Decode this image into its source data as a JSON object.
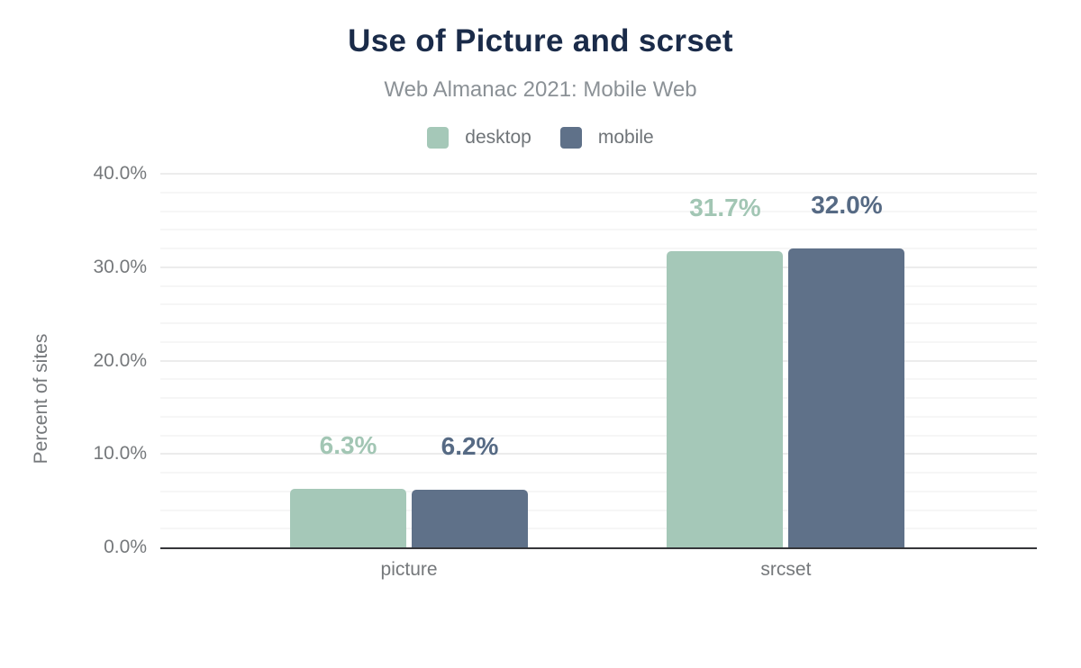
{
  "chart_data": {
    "type": "bar",
    "title": "Use of Picture and scrset",
    "subtitle": "Web Almanac 2021: Mobile Web",
    "categories": [
      "picture",
      "srcset"
    ],
    "series": [
      {
        "name": "desktop",
        "color": "#a5c8b8",
        "label_color": "#a2c6b4",
        "values": [
          6.3,
          31.7
        ],
        "value_labels": [
          "6.3%",
          "31.7%"
        ]
      },
      {
        "name": "mobile",
        "color": "#5f7189",
        "label_color": "#566a84",
        "values": [
          6.2,
          32.0
        ],
        "value_labels": [
          "6.2%",
          "32.0%"
        ]
      }
    ],
    "xlabel": "",
    "ylabel": "Percent of sites",
    "ylim": [
      0,
      40
    ],
    "yticks": [
      {
        "value": 0,
        "label": "0.0%"
      },
      {
        "value": 10,
        "label": "10.0%"
      },
      {
        "value": 20,
        "label": "20.0%"
      },
      {
        "value": 30,
        "label": "30.0%"
      },
      {
        "value": 40,
        "label": "40.0%"
      }
    ],
    "grid": {
      "minor_interval": 2,
      "major_interval": 10,
      "minor_color": "#f6f6f6",
      "major_color": "#ececec"
    },
    "legend_position": "top",
    "colors": {
      "title": "#1a2b49",
      "subtitle": "#8b9196",
      "axis_text": "#75787b",
      "axis_line": "#35363a",
      "background": "#ffffff"
    }
  }
}
